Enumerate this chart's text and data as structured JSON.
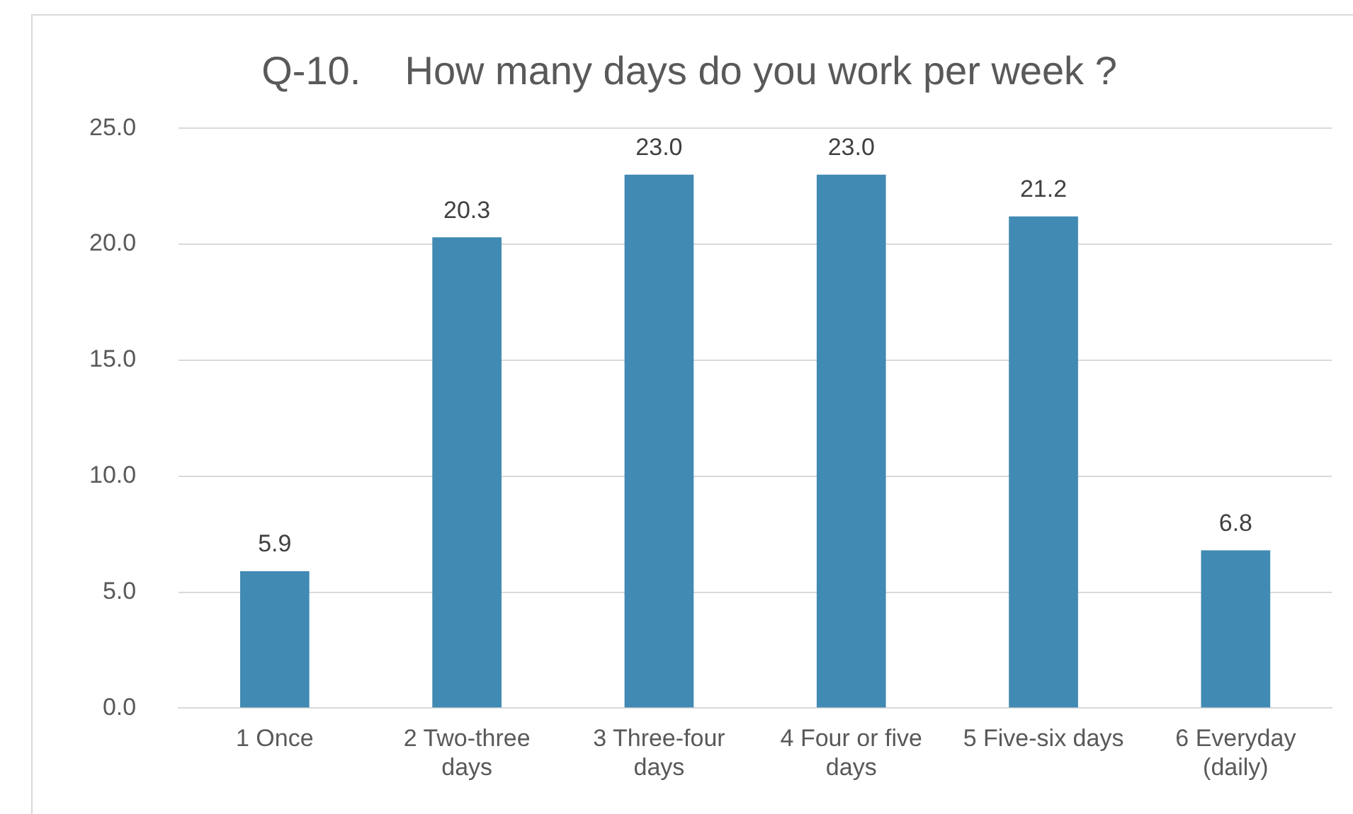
{
  "chart_data": {
    "type": "bar",
    "title": "Q-10.    How many days do you work per week ?",
    "categories": [
      "1 Once",
      "2 Two-three days",
      "3 Three-four days",
      "4 Four or five days",
      "5 Five-six days",
      "6 Everyday (daily)"
    ],
    "values": [
      5.9,
      20.3,
      23.0,
      23.0,
      21.2,
      6.8
    ],
    "color": "#418ab3",
    "ylim": [
      0,
      25
    ],
    "yticks": [
      {
        "value": 0,
        "label": "0.0"
      },
      {
        "value": 5,
        "label": "5.0"
      },
      {
        "value": 10,
        "label": "10.0"
      },
      {
        "value": 15,
        "label": "15.0"
      },
      {
        "value": 20,
        "label": "20.0"
      },
      {
        "value": 25,
        "label": "25.0"
      }
    ],
    "value_labels": [
      "5.9",
      "20.3",
      "23.0",
      "23.0",
      "21.2",
      "6.8"
    ],
    "grid": "y"
  }
}
